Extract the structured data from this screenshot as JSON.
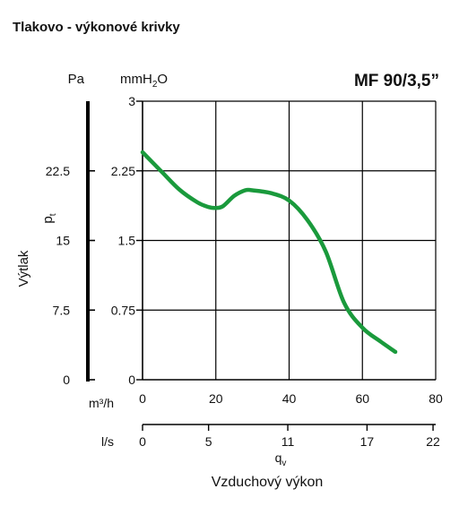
{
  "heading": "Tlakovo - výkonové krivky",
  "chart_data": {
    "type": "line",
    "title": "MF 90/3,5”",
    "ylabel": "Výtlak",
    "ylabel_symbol": "p",
    "ylabel_symbol_sub": "t",
    "y_unit_left": "Pa",
    "y_unit_right": "mmH",
    "y_unit_right_sub": "2",
    "y_unit_right_tail": "O",
    "xlabel": "Vzduchový výkon",
    "xlabel_symbol": "q",
    "xlabel_symbol_sub": "v",
    "x_unit_primary": "m³/h",
    "x_unit_secondary": "l/s",
    "xlim": [
      0,
      80
    ],
    "ylim": [
      0,
      3
    ],
    "x_ticks": [
      "0",
      "20",
      "40",
      "60",
      "80"
    ],
    "x_ticks_secondary": [
      "0",
      "5",
      "11",
      "17",
      "22"
    ],
    "y_ticks_right": [
      "0",
      "0.75",
      "1.5",
      "2.25",
      "3"
    ],
    "y_ticks_left": [
      "0",
      "7.5",
      "15",
      "22.5"
    ],
    "grid": true,
    "series": [
      {
        "color": "#1a9a3c",
        "x": [
          0,
          5,
          10,
          15,
          18,
          20,
          22,
          25,
          28,
          30,
          35,
          40,
          45,
          50,
          55,
          60,
          65,
          69
        ],
        "y": [
          2.45,
          2.25,
          2.05,
          1.91,
          1.86,
          1.85,
          1.87,
          1.98,
          2.04,
          2.04,
          2.01,
          1.93,
          1.72,
          1.38,
          0.83,
          0.56,
          0.41,
          0.3
        ]
      }
    ]
  }
}
